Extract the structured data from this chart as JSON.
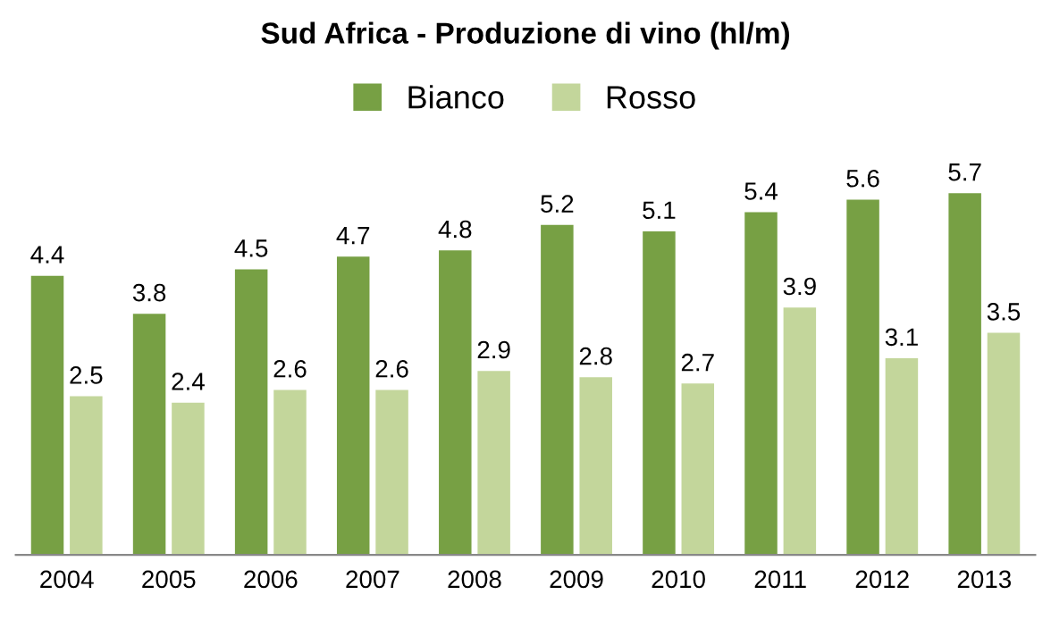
{
  "chart_data": {
    "type": "bar",
    "title": "Sud Africa - Produzione di vino (hl/m)",
    "categories": [
      "2004",
      "2005",
      "2006",
      "2007",
      "2008",
      "2009",
      "2010",
      "2011",
      "2012",
      "2013"
    ],
    "series": [
      {
        "name": "Bianco",
        "color": "#77a044",
        "values": [
          4.4,
          3.8,
          4.5,
          4.7,
          4.8,
          5.2,
          5.1,
          5.4,
          5.6,
          5.7
        ]
      },
      {
        "name": "Rosso",
        "color": "#c3d69b",
        "values": [
          2.5,
          2.4,
          2.6,
          2.6,
          2.9,
          2.8,
          2.7,
          3.9,
          3.1,
          3.5
        ]
      }
    ],
    "data_labels": true,
    "legend": "top",
    "grid": false
  }
}
